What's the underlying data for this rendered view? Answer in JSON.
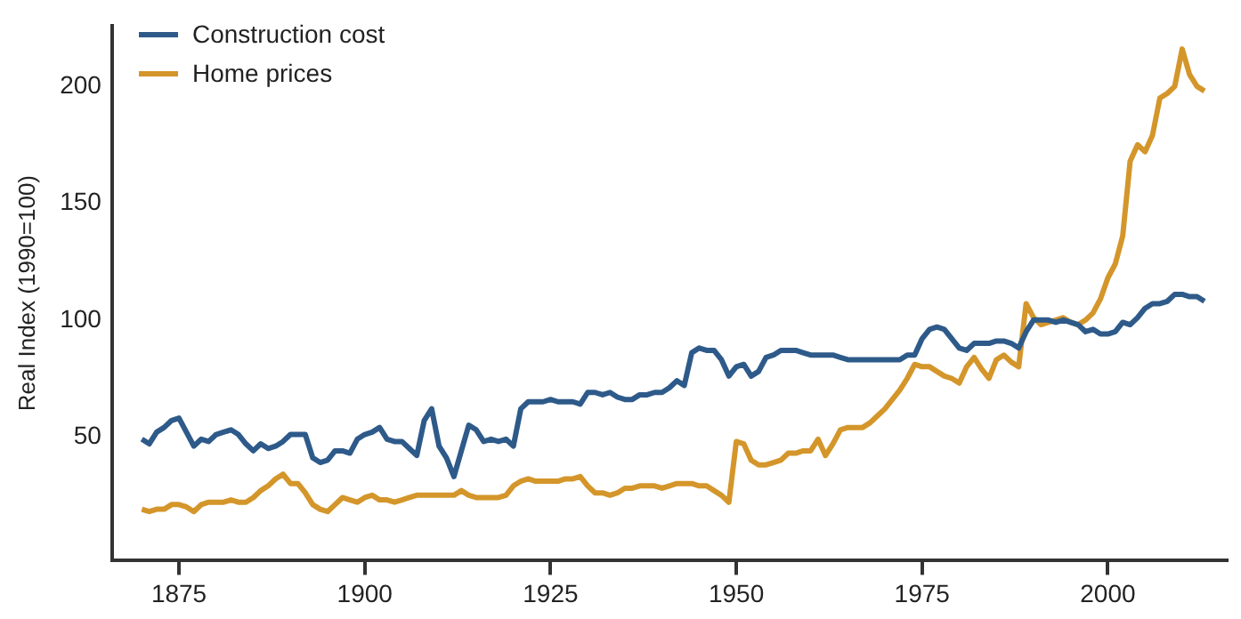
{
  "chart_data": {
    "type": "line",
    "ylabel": "Real Index (1990=100)",
    "x": [
      1870,
      1871,
      1872,
      1873,
      1874,
      1875,
      1876,
      1877,
      1878,
      1879,
      1880,
      1881,
      1882,
      1883,
      1884,
      1885,
      1886,
      1887,
      1888,
      1889,
      1890,
      1891,
      1892,
      1893,
      1894,
      1895,
      1896,
      1897,
      1898,
      1899,
      1900,
      1901,
      1902,
      1903,
      1904,
      1905,
      1906,
      1907,
      1908,
      1909,
      1910,
      1911,
      1912,
      1913,
      1914,
      1915,
      1916,
      1917,
      1918,
      1919,
      1920,
      1921,
      1922,
      1923,
      1924,
      1925,
      1926,
      1927,
      1928,
      1929,
      1930,
      1931,
      1932,
      1933,
      1934,
      1935,
      1936,
      1937,
      1938,
      1939,
      1940,
      1941,
      1942,
      1943,
      1944,
      1945,
      1946,
      1947,
      1948,
      1949,
      1950,
      1951,
      1952,
      1953,
      1954,
      1955,
      1956,
      1957,
      1958,
      1959,
      1960,
      1961,
      1962,
      1963,
      1964,
      1965,
      1966,
      1967,
      1968,
      1969,
      1970,
      1971,
      1972,
      1973,
      1974,
      1975,
      1976,
      1977,
      1978,
      1979,
      1980,
      1981,
      1982,
      1983,
      1984,
      1985,
      1986,
      1987,
      1988,
      1989,
      1990,
      1991,
      1992,
      1993,
      1994,
      1995,
      1996,
      1997,
      1998,
      1999,
      2000,
      2001,
      2002,
      2003,
      2004,
      2005,
      2006,
      2007,
      2008,
      2009,
      2010,
      2011,
      2012,
      2013
    ],
    "series": [
      {
        "name": "Construction cost",
        "color": "#2e5a8a",
        "values": [
          49,
          47,
          52,
          54,
          57,
          58,
          52,
          46,
          49,
          48,
          51,
          52,
          53,
          51,
          47,
          44,
          47,
          45,
          46,
          48,
          51,
          51,
          51,
          41,
          39,
          40,
          44,
          44,
          43,
          49,
          51,
          52,
          54,
          49,
          48,
          48,
          45,
          42,
          57,
          62,
          46,
          41,
          33,
          44,
          55,
          53,
          48,
          49,
          48,
          49,
          46,
          62,
          65,
          65,
          65,
          66,
          65,
          65,
          65,
          64,
          69,
          69,
          68,
          69,
          67,
          66,
          66,
          68,
          68,
          69,
          69,
          71,
          74,
          72,
          86,
          88,
          87,
          87,
          83,
          76,
          80,
          81,
          76,
          78,
          84,
          85,
          87,
          87,
          87,
          86,
          85,
          85,
          85,
          85,
          84,
          83,
          83,
          83,
          83,
          83,
          83,
          83,
          83,
          85,
          85,
          92,
          96,
          97,
          96,
          92,
          88,
          87,
          90,
          90,
          90,
          91,
          91,
          90,
          88,
          95,
          100,
          100,
          100,
          99,
          100,
          99,
          98,
          95,
          96,
          94,
          94,
          95,
          99,
          98,
          101,
          105,
          107,
          107,
          108,
          111,
          111,
          110,
          110,
          108
        ]
      },
      {
        "name": "Home prices",
        "color": "#d4962a",
        "values": [
          19,
          18,
          19,
          19,
          21,
          21,
          20,
          18,
          21,
          22,
          22,
          22,
          23,
          22,
          22,
          24,
          27,
          29,
          32,
          34,
          30,
          30,
          26,
          21,
          19,
          18,
          21,
          24,
          23,
          22,
          24,
          25,
          23,
          23,
          22,
          23,
          24,
          25,
          25,
          25,
          25,
          25,
          25,
          27,
          25,
          24,
          24,
          24,
          24,
          25,
          29,
          31,
          32,
          31,
          31,
          31,
          31,
          32,
          32,
          33,
          29,
          26,
          26,
          25,
          26,
          28,
          28,
          29,
          29,
          29,
          28,
          29,
          30,
          30,
          30,
          29,
          29,
          27,
          25,
          22,
          48,
          47,
          40,
          38,
          38,
          39,
          40,
          43,
          43,
          44,
          44,
          49,
          42,
          47,
          53,
          54,
          54,
          54,
          56,
          59,
          62,
          66,
          70,
          75,
          81,
          80,
          80,
          78,
          76,
          75,
          73,
          80,
          84,
          79,
          75,
          83,
          85,
          82,
          80,
          107,
          101,
          98,
          99,
          100,
          101,
          99,
          98,
          100,
          103,
          109,
          118,
          124,
          136,
          168,
          175,
          172,
          179,
          195,
          197,
          200,
          216,
          205,
          200,
          198
        ]
      }
    ],
    "xlim": [
      1866,
      2016
    ],
    "xticks": [
      1875,
      1900,
      1925,
      1950,
      1975,
      2000
    ],
    "ylim": [
      -3,
      226
    ],
    "yticks": [
      50,
      100,
      150,
      200
    ],
    "grid": false,
    "legend": "top left",
    "marker": "none",
    "line_style": "solid"
  }
}
